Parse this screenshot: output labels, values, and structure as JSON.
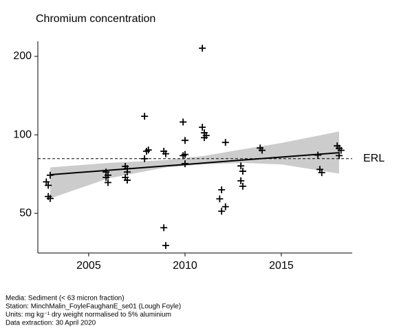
{
  "chart_data": {
    "type": "scatter",
    "title": "Chromium concentration",
    "x": [
      2002.8,
      2003.0,
      2002.9,
      2002.9,
      2003.0,
      2005.9,
      2006.0,
      2005.9,
      2006.0,
      2006.9,
      2007.0,
      2007.0,
      2006.9,
      2007.0,
      2007.9,
      2008.1,
      2008.0,
      2007.9,
      2008.9,
      2009.0,
      2008.9,
      2009.0,
      2009.9,
      2010.0,
      2010.0,
      2009.9,
      2010.0,
      2010.9,
      2010.9,
      2011.0,
      2011.1,
      2011.0,
      2012.1,
      2011.9,
      2011.8,
      2012.1,
      2011.9,
      2012.9,
      2013.0,
      2012.9,
      2013.0,
      2013.9,
      2014.0,
      2016.9,
      2017.0,
      2017.1,
      2017.9,
      2018.0,
      2018.1,
      2018.0
    ],
    "values": [
      66,
      70,
      64,
      58,
      57,
      72,
      70,
      68.6,
      65.6,
      75.7,
      74.2,
      72,
      68.6,
      67,
      117.8,
      87.5,
      86.5,
      81,
      86.5,
      84.6,
      44,
      37.6,
      112,
      95.2,
      84.1,
      83.2,
      77.5,
      215,
      106.9,
      101.8,
      99.4,
      97.5,
      93.5,
      61.5,
      56.8,
      53,
      50.9,
      76,
      72.5,
      66.6,
      63.5,
      89,
      87.2,
      83.6,
      73.7,
      71.6,
      90.7,
      88.8,
      87.2,
      83.2
    ],
    "color": "#000000",
    "trend": {
      "x": [
        2003,
        2018
      ],
      "values": [
        70.3,
        85.4
      ],
      "color": "#000000"
    },
    "band": {
      "x": [
        2003,
        2006,
        2009,
        2011,
        2013,
        2015,
        2018
      ],
      "upper": [
        75,
        78,
        80,
        83,
        88,
        93,
        103
      ],
      "lower": [
        57,
        68,
        75,
        77,
        78,
        77,
        71
      ],
      "color": "#cccccc"
    },
    "reference_line": {
      "value": 81,
      "label": "ERL"
    },
    "xlim": [
      2002.36,
      2018.68
    ],
    "ylim": [
      35.2,
      228.6
    ],
    "xticks": [
      2005,
      2010,
      2015
    ],
    "yticks": [
      50,
      100,
      200
    ],
    "log_y": true,
    "notes": [
      "Media: Sediment (< 63 micron fraction)",
      "Station: MinchMalin_FoyleFaughanE_se01 (Lough Foyle)",
      "Units:  mg kg⁻¹ dry weight normalised to 5% aluminium",
      "Data extraction: 30 April 2020"
    ]
  }
}
